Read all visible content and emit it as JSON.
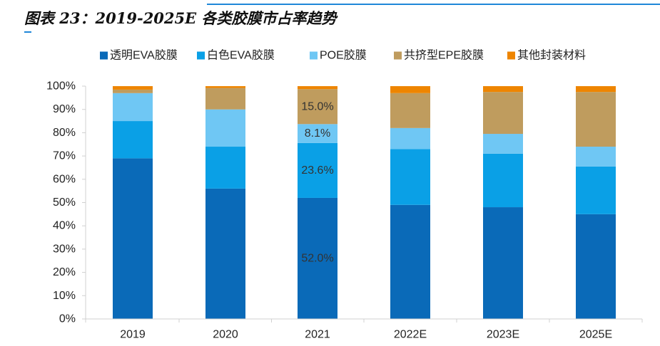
{
  "caption": {
    "title": "图表 23：2019-2025E 各类胶膜市占率趋势"
  },
  "colors": {
    "accent": "#1f87d8",
    "axis": "#d0d0d0",
    "tick_text": "#222222",
    "label_text": "#333333"
  },
  "chart_data": {
    "type": "bar",
    "stacked": true,
    "title": "",
    "xlabel": "",
    "ylabel": "",
    "ylim": [
      0,
      100
    ],
    "yticks": [
      0,
      10,
      20,
      30,
      40,
      50,
      60,
      70,
      80,
      90,
      100
    ],
    "ytick_labels": [
      "0%",
      "10%",
      "20%",
      "30%",
      "40%",
      "50%",
      "60%",
      "70%",
      "80%",
      "90%",
      "100%"
    ],
    "legend_position": "top",
    "grid": false,
    "categories": [
      "2019",
      "2020",
      "2021",
      "2022E",
      "2023E",
      "2025E"
    ],
    "series": [
      {
        "name": "透明EVA胶膜",
        "color": "#0a6ab8",
        "values": [
          69,
          56,
          52.0,
          49,
          48,
          45
        ]
      },
      {
        "name": "白色EVA胶膜",
        "color": "#0aa0e6",
        "values": [
          16,
          18,
          23.6,
          24,
          23,
          20.5
        ]
      },
      {
        "name": "POE胶膜",
        "color": "#6fc7f4",
        "values": [
          12,
          16,
          8.1,
          9,
          8.5,
          8.5
        ]
      },
      {
        "name": "共挤型EPE胶膜",
        "color": "#bf9c5e",
        "values": [
          1.5,
          9.2,
          15.0,
          15,
          18,
          23.5
        ]
      },
      {
        "name": "其他封装材料",
        "color": "#ee8500",
        "values": [
          1.5,
          0.8,
          1.3,
          3,
          2.5,
          2.5
        ]
      }
    ],
    "data_labels": [
      {
        "category_index": 2,
        "series_index": 0,
        "text": "52.0%"
      },
      {
        "category_index": 2,
        "series_index": 1,
        "text": "23.6%"
      },
      {
        "category_index": 2,
        "series_index": 2,
        "text": "8.1%"
      },
      {
        "category_index": 2,
        "series_index": 3,
        "text": "15.0%"
      }
    ]
  }
}
